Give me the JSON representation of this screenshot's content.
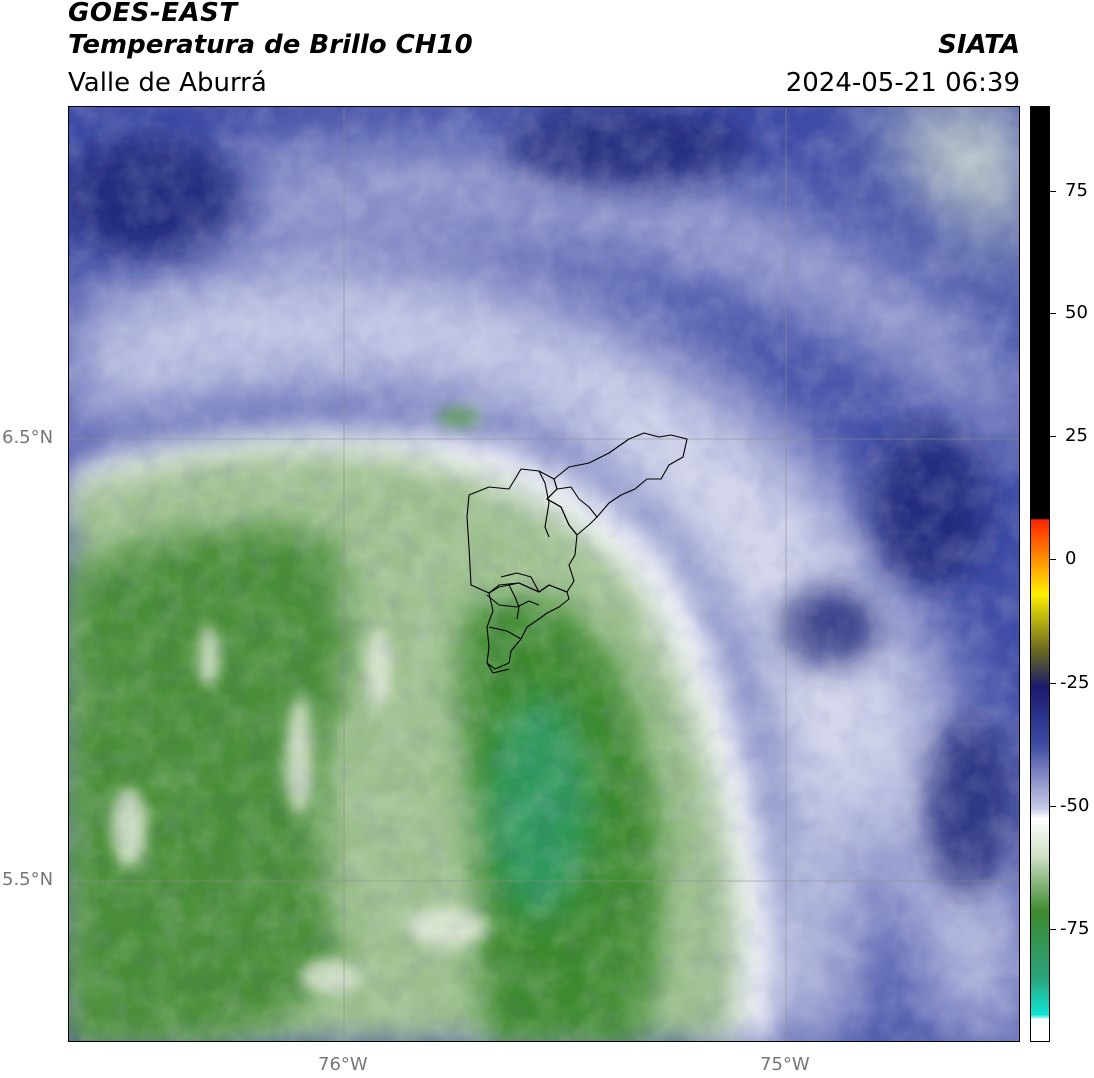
{
  "header": {
    "satellite": "GOES-EAST",
    "product": "Temperatura de Brillo CH10",
    "region": "Valle de Aburrá",
    "brand": "SIATA",
    "datetime": "2024-05-21 06:39"
  },
  "map": {
    "lat_labels": [
      "6.5°N",
      "5.5°N"
    ],
    "lon_labels": [
      "76°W",
      "75°W"
    ],
    "gridlines": true
  },
  "colorbar": {
    "ticks": [
      "75",
      "50",
      "25",
      "0",
      "-25",
      "-50",
      "-75"
    ],
    "colors": {
      "black": "#000000",
      "red": "#ff2200",
      "orange": "#ff8800",
      "yellow": "#ffee00",
      "olive": "#6b6b1f",
      "navy": "#1a1a6e",
      "blue": "#3c4aa3",
      "lavender": "#c9cbe6",
      "white": "#ffffff",
      "lightgreen": "#cfe0c6",
      "green": "#3c8a2e",
      "teal": "#2aa37a",
      "cyan": "#10e6d6"
    }
  }
}
